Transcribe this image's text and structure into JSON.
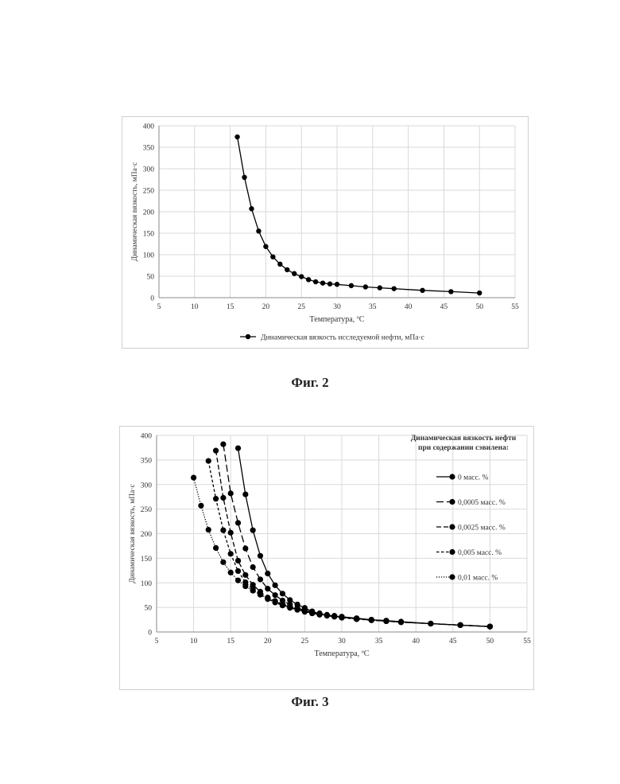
{
  "figures": [
    {
      "caption": "Фиг. 2",
      "chart_data": {
        "type": "scatter",
        "title": "",
        "xlabel": "Температура, ºС",
        "ylabel": "Динамическая вязкость, мПа·с",
        "xlim": [
          5,
          55
        ],
        "ylim": [
          0,
          400
        ],
        "xticks": [
          5,
          10,
          15,
          20,
          25,
          30,
          35,
          40,
          45,
          50,
          55
        ],
        "yticks": [
          0,
          50,
          100,
          150,
          200,
          250,
          300,
          350,
          400
        ],
        "grid": true,
        "legend_position": "bottom",
        "series": [
          {
            "name": "Динамическая вязкость исследуемой нефти, мПа·с",
            "style": "solid",
            "x": [
              16,
              17,
              18,
              19,
              20,
              21,
              22,
              23,
              24,
              25,
              26,
              27,
              28,
              29,
              30,
              32,
              34,
              36,
              38,
              42,
              46,
              50
            ],
            "y": [
              374,
              280,
              207,
              155,
              119,
              95,
              78,
              65,
              56,
              49,
              42,
              37,
              34,
              32,
              31,
              28,
              25,
              23,
              21,
              17,
              14,
              11
            ]
          }
        ]
      }
    },
    {
      "caption": "Фиг. 3",
      "chart_data": {
        "type": "scatter",
        "title": "",
        "xlabel": "Температура, ºС",
        "ylabel": "Динамическая вязкость, мПа·с",
        "xlim": [
          5,
          55
        ],
        "ylim": [
          0,
          400
        ],
        "xticks": [
          5,
          10,
          15,
          20,
          25,
          30,
          35,
          40,
          45,
          50,
          55
        ],
        "yticks": [
          0,
          50,
          100,
          150,
          200,
          250,
          300,
          350,
          400
        ],
        "grid": true,
        "legend_title": "Динамическая вязкость нефти при содержании сэвилена:",
        "legend_position": "right",
        "series": [
          {
            "name": "0 масс. %",
            "style": "solid",
            "x": [
              16,
              17,
              18,
              19,
              20,
              21,
              22,
              23,
              24,
              25,
              26,
              27,
              28,
              29,
              30,
              32,
              34,
              36,
              38,
              42,
              46,
              50
            ],
            "y": [
              374,
              280,
              207,
              155,
              119,
              95,
              78,
              65,
              56,
              49,
              42,
              37,
              34,
              32,
              31,
              28,
              25,
              23,
              21,
              17,
              14,
              11
            ]
          },
          {
            "name": "0,0005 масс. %",
            "style": "longdash",
            "x": [
              14,
              15,
              16,
              17,
              18,
              19,
              20,
              21,
              22,
              23,
              24,
              25,
              26,
              27,
              28,
              29,
              30,
              32,
              34,
              36,
              38,
              42,
              46,
              50
            ],
            "y": [
              382,
              282,
              222,
              170,
              132,
              107,
              88,
              75,
              64,
              56,
              49,
              44,
              40,
              36,
              34,
              32,
              30,
              27,
              25,
              23,
              20,
              17,
              14,
              11
            ]
          },
          {
            "name": "0,0025 масс. %",
            "style": "dash",
            "x": [
              13,
              14,
              15,
              16,
              17,
              18,
              19,
              20,
              21,
              22,
              23,
              24,
              25,
              26,
              27,
              28,
              29,
              30,
              32,
              34,
              36,
              38,
              42,
              46,
              50
            ],
            "y": [
              369,
              273,
              202,
              145,
              116,
              96,
              82,
              70,
              62,
              55,
              50,
              46,
              42,
              38,
              36,
              34,
              32,
              30,
              27,
              24,
              22,
              20,
              17,
              14,
              11
            ]
          },
          {
            "name": "0,005 масс. %",
            "style": "shortdash",
            "x": [
              12,
              13,
              14,
              15,
              16,
              17,
              18,
              19,
              20,
              21,
              22,
              23,
              24,
              25,
              26,
              27,
              28,
              29,
              30,
              32,
              34,
              36,
              38,
              42,
              46,
              50
            ],
            "y": [
              348,
              271,
              207,
              159,
              124,
              101,
              87,
              76,
              67,
              60,
              54,
              49,
              45,
              41,
              38,
              35,
              33,
              31,
              29,
              26,
              24,
              22,
              20,
              17,
              14,
              11
            ]
          },
          {
            "name": "0,01 масс. %",
            "style": "dotted",
            "x": [
              10,
              11,
              12,
              13,
              14,
              15,
              16,
              17,
              18,
              19,
              20,
              21,
              22,
              23,
              24,
              25,
              26,
              27,
              28,
              29,
              30,
              32,
              34,
              36,
              38,
              42,
              46,
              50
            ],
            "y": [
              314,
              257,
              208,
              171,
              142,
              121,
              105,
              93,
              84,
              76,
              69,
              63,
              57,
              52,
              48,
              44,
              41,
              38,
              35,
              33,
              31,
              27,
              24,
              22,
              20,
              17,
              14,
              11
            ]
          }
        ]
      }
    }
  ]
}
